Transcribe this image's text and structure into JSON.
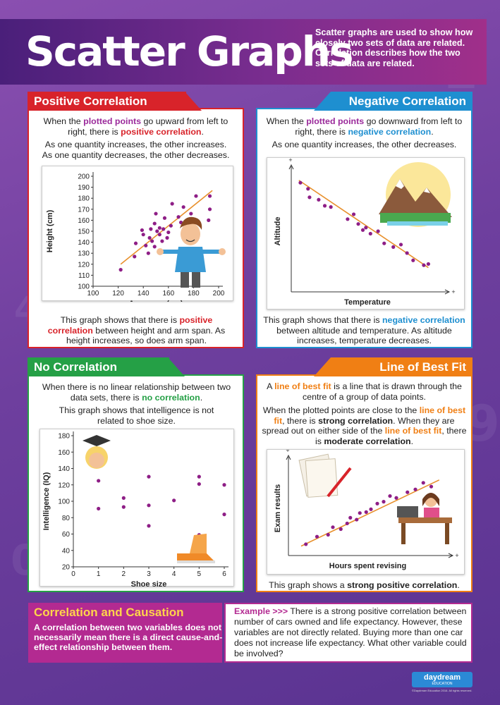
{
  "title": "Scatter Graphs",
  "intro": "Scatter graphs are used to show how closely two sets of data are related. Correlation describes how the two sets of data are related.",
  "positive": {
    "heading": "Positive Correlation",
    "p1_a": "When the ",
    "p1_b": "plotted points",
    "p1_c": " go upward from left to right, there is ",
    "p1_d": "positive correlation",
    "p1_e": ".",
    "p2": "As one quantity increases, the other increases. As one quantity decreases, the other decreases.",
    "cap_a": "This graph shows that there is ",
    "cap_b": "positive correlation",
    "cap_c": " between height and arm span. As height increases, so does arm span."
  },
  "negative": {
    "heading": "Negative Correlation",
    "p1_a": "When the ",
    "p1_b": "plotted points",
    "p1_c": " go downward from left to right, there is ",
    "p1_d": "negative correlation",
    "p1_e": ".",
    "p2": "As one quantity increases, the other decreases.",
    "cap_a": "This graph shows that there is ",
    "cap_b": "negative correlation",
    "cap_c": " between altitude and temperature. As altitude increases, temperature decreases."
  },
  "none": {
    "heading": "No Correlation",
    "p1_a": "When there is no linear relationship between two data sets, there is ",
    "p1_b": "no correlation",
    "p1_c": ".",
    "p2": "This graph shows that intelligence is not related to shoe size."
  },
  "bestfit": {
    "heading": "Line of Best Fit",
    "p1_a": "A ",
    "p1_b": "line of best fit",
    "p1_c": " is a line that is drawn through the centre of a group of data points.",
    "p2_a": "When the plotted points are close to the ",
    "p2_b": "line of best fit",
    "p2_c": ", there is ",
    "p2_d": "strong correlation",
    "p2_e": ". When they are spread out on either side of the ",
    "p2_f": "line of best fit",
    "p2_g": ", there is ",
    "p2_h": "moderate correlation",
    "p2_i": ".",
    "cap_a": "This graph shows a ",
    "cap_b": "strong positive correlation",
    "cap_c": "."
  },
  "causation": {
    "heading": "Correlation and Causation",
    "body": "A correlation between two variables does not necessarily mean there is a direct cause-and-effect relationship between them."
  },
  "example": {
    "label": "Example >>>",
    "body": " There is a strong positive correlation between number of cars owned and life expectancy. However, these variables are not directly related. Buying more than one car does not increase life expectancy. What other variable could be involved?"
  },
  "logo": {
    "name": "daydream",
    "sub": "EDUCATION"
  },
  "copyright": "©Daydream Education 2016. All rights reserved.",
  "colors": {
    "positive": "#d8232a",
    "negative": "#1e8fd0",
    "none": "#25a046",
    "bestfit": "#f07f14",
    "highlight_purple": "#9b2a9b",
    "point": "#8e1e86",
    "line": "#e8902c"
  },
  "chart_data": [
    {
      "type": "scatter",
      "name": "positive",
      "xlabel": "Arm span (cm)",
      "ylabel": "Height (cm)",
      "xlim": [
        100,
        200
      ],
      "ylim": [
        100,
        200
      ],
      "xticks": [
        100,
        120,
        140,
        160,
        180,
        200
      ],
      "yticks": [
        100,
        110,
        120,
        130,
        140,
        150,
        160,
        170,
        180,
        190,
        200
      ],
      "points": [
        [
          122,
          115
        ],
        [
          133,
          127
        ],
        [
          134,
          139
        ],
        [
          139,
          151
        ],
        [
          140,
          147
        ],
        [
          142,
          137
        ],
        [
          144,
          130
        ],
        [
          145,
          144
        ],
        [
          146,
          152
        ],
        [
          147,
          141
        ],
        [
          149,
          136
        ],
        [
          149,
          157
        ],
        [
          150,
          166
        ],
        [
          151,
          150
        ],
        [
          153,
          147
        ],
        [
          153,
          153
        ],
        [
          155,
          141
        ],
        [
          156,
          152
        ],
        [
          157,
          162
        ],
        [
          159,
          144
        ],
        [
          160,
          149
        ],
        [
          162,
          155
        ],
        [
          163,
          175
        ],
        [
          168,
          163
        ],
        [
          170,
          158
        ],
        [
          172,
          172
        ],
        [
          178,
          166
        ],
        [
          182,
          182
        ],
        [
          192,
          160
        ],
        [
          193,
          182
        ],
        [
          193,
          170
        ]
      ],
      "fit": [
        [
          122,
          120
        ],
        [
          195,
          187
        ]
      ]
    },
    {
      "type": "scatter",
      "name": "negative",
      "xlabel": "Temperature",
      "ylabel": "Altitude",
      "points": [
        [
          0.06,
          0.9
        ],
        [
          0.11,
          0.85
        ],
        [
          0.12,
          0.78
        ],
        [
          0.18,
          0.76
        ],
        [
          0.22,
          0.71
        ],
        [
          0.26,
          0.7
        ],
        [
          0.37,
          0.6
        ],
        [
          0.41,
          0.64
        ],
        [
          0.44,
          0.56
        ],
        [
          0.47,
          0.51
        ],
        [
          0.49,
          0.53
        ],
        [
          0.52,
          0.48
        ],
        [
          0.57,
          0.5
        ],
        [
          0.61,
          0.4
        ],
        [
          0.67,
          0.37
        ],
        [
          0.72,
          0.39
        ],
        [
          0.76,
          0.32
        ],
        [
          0.8,
          0.26
        ],
        [
          0.87,
          0.22
        ],
        [
          0.9,
          0.23
        ]
      ],
      "fit": [
        [
          0.05,
          0.92
        ],
        [
          0.9,
          0.2
        ]
      ]
    },
    {
      "type": "scatter",
      "name": "none",
      "xlabel": "Shoe size",
      "ylabel": "Intelligence (IQ)",
      "xlim": [
        0,
        6
      ],
      "ylim": [
        20,
        180
      ],
      "xticks": [
        0,
        1,
        2,
        3,
        4,
        5,
        6
      ],
      "yticks": [
        20,
        40,
        60,
        80,
        100,
        120,
        140,
        160,
        180
      ],
      "points": [
        [
          1,
          125
        ],
        [
          1,
          91
        ],
        [
          2,
          104
        ],
        [
          2,
          93
        ],
        [
          3,
          130
        ],
        [
          3,
          95
        ],
        [
          3,
          70
        ],
        [
          4,
          101
        ],
        [
          5,
          130
        ],
        [
          5,
          121
        ],
        [
          5,
          59
        ],
        [
          6,
          120
        ],
        [
          6,
          84
        ]
      ]
    },
    {
      "type": "scatter",
      "name": "bestfit",
      "xlabel": "Hours spent revising",
      "ylabel": "Exam results",
      "points": [
        [
          0.11,
          0.12
        ],
        [
          0.18,
          0.2
        ],
        [
          0.25,
          0.22
        ],
        [
          0.28,
          0.3
        ],
        [
          0.33,
          0.28
        ],
        [
          0.37,
          0.34
        ],
        [
          0.39,
          0.4
        ],
        [
          0.43,
          0.38
        ],
        [
          0.45,
          0.45
        ],
        [
          0.49,
          0.46
        ],
        [
          0.52,
          0.49
        ],
        [
          0.56,
          0.55
        ],
        [
          0.6,
          0.57
        ],
        [
          0.64,
          0.63
        ],
        [
          0.68,
          0.61
        ],
        [
          0.75,
          0.67
        ],
        [
          0.8,
          0.7
        ],
        [
          0.85,
          0.77
        ],
        [
          0.9,
          0.73
        ]
      ],
      "fit": [
        [
          0.08,
          0.1
        ],
        [
          0.95,
          0.8
        ]
      ]
    }
  ]
}
